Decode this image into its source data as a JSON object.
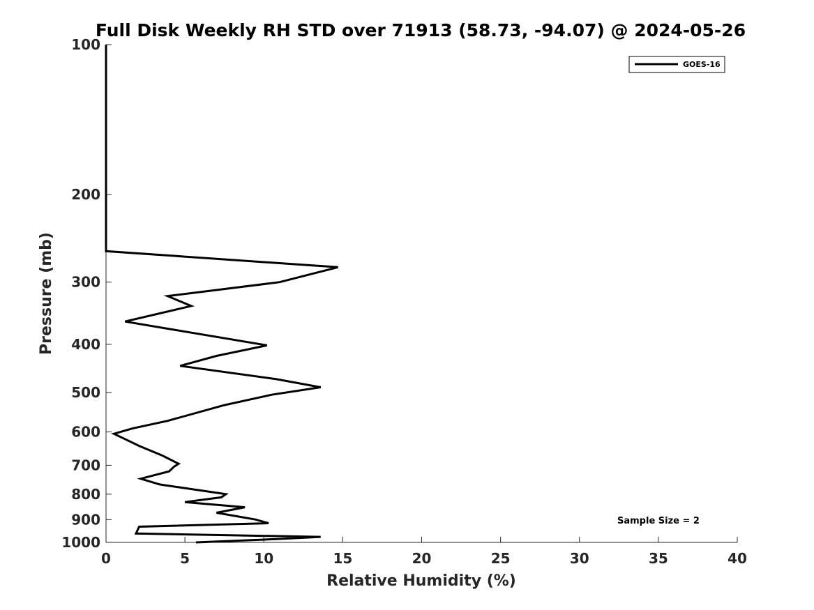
{
  "chart_data": {
    "type": "line",
    "title": "Full Disk Weekly RH STD over 71913 (58.73, -94.07) @ 2024-05-26",
    "xlabel": "Relative Humidity (%)",
    "ylabel": "Pressure (mb)",
    "xlim": [
      0,
      40
    ],
    "ylim": [
      100,
      1000
    ],
    "yscale": "log",
    "y_reversed": true,
    "xticks": [
      0,
      5,
      10,
      15,
      20,
      25,
      30,
      35,
      40
    ],
    "yticks": [
      100,
      200,
      300,
      400,
      500,
      600,
      700,
      800,
      900,
      1000
    ],
    "grid": false,
    "legend_position": "top-right",
    "annotation": "Sample Size = 2",
    "series": [
      {
        "name": "GOES-16",
        "color": "#000000",
        "points": [
          [
            0.0,
            100
          ],
          [
            0.0,
            150
          ],
          [
            0.0,
            200
          ],
          [
            0.0,
            240
          ],
          [
            0.0,
            260
          ],
          [
            14.7,
            280
          ],
          [
            11.0,
            300
          ],
          [
            3.9,
            320
          ],
          [
            5.4,
            335
          ],
          [
            1.2,
            360
          ],
          [
            10.2,
            402
          ],
          [
            7.0,
            422
          ],
          [
            4.7,
            442
          ],
          [
            10.8,
            470
          ],
          [
            13.6,
            488
          ],
          [
            10.5,
            505
          ],
          [
            7.5,
            530
          ],
          [
            3.9,
            570
          ],
          [
            1.7,
            590
          ],
          [
            0.5,
            605
          ],
          [
            1.2,
            620
          ],
          [
            2.1,
            640
          ],
          [
            3.6,
            670
          ],
          [
            4.6,
            695
          ],
          [
            4.3,
            705
          ],
          [
            4.0,
            720
          ],
          [
            2.2,
            745
          ],
          [
            3.4,
            765
          ],
          [
            7.6,
            800
          ],
          [
            7.3,
            812
          ],
          [
            5.0,
            830
          ],
          [
            8.8,
            850
          ],
          [
            7.0,
            872
          ],
          [
            9.5,
            900
          ],
          [
            10.3,
            915
          ],
          [
            2.1,
            930
          ],
          [
            1.9,
            960
          ],
          [
            13.6,
            975
          ],
          [
            10.8,
            985
          ],
          [
            5.7,
            1000
          ]
        ]
      }
    ]
  }
}
